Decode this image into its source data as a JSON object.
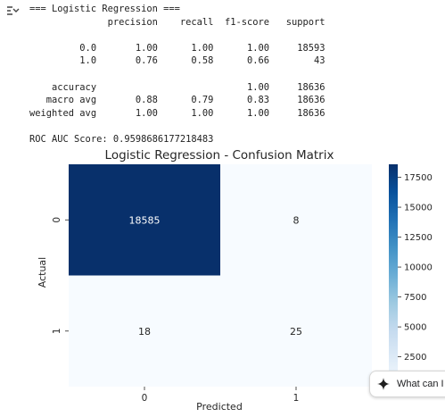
{
  "toolbar": {
    "toggle_icon": "output-collapse-icon"
  },
  "console": {
    "lines": [
      "=== Logistic Regression ===",
      "              precision    recall  f1-score   support",
      "",
      "         0.0       1.00      1.00      1.00     18593",
      "         1.0       0.76      0.58      0.66        43",
      "",
      "    accuracy                           1.00     18636",
      "   macro avg       0.88      0.79      0.83     18636",
      "weighted avg       1.00      1.00      1.00     18636",
      "",
      "ROC AUC Score: 0.9598686177218483"
    ]
  },
  "chart_data": {
    "type": "heatmap",
    "title": "Logistic Regression - Confusion Matrix",
    "xlabel": "Predicted",
    "ylabel": "Actual",
    "x_categories": [
      "0",
      "1"
    ],
    "y_categories": [
      "0",
      "1"
    ],
    "values": [
      [
        18585,
        8
      ],
      [
        18,
        25
      ]
    ],
    "colormap": "Blues",
    "vmin": 8,
    "vmax": 18585,
    "colorbar_ticks": [
      2500,
      5000,
      7500,
      10000,
      12500,
      15000,
      17500
    ],
    "colors": {
      "low": "#f7fbff",
      "high": "#08306b"
    },
    "annotations": {
      "dark_text": "#262626",
      "light_text": "#ffffff"
    }
  },
  "assistant_chip": {
    "label": "What can I",
    "icon": "sparkle-icon"
  }
}
